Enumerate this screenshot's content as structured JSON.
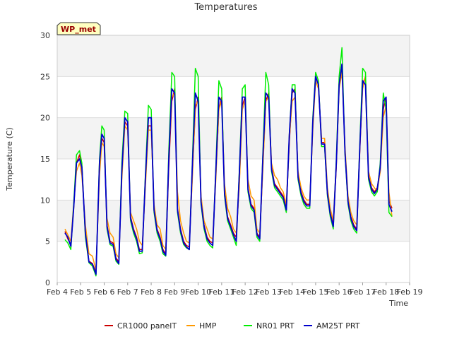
{
  "chart_data": {
    "type": "line",
    "title": "Temperatures",
    "xlabel": "Time",
    "ylabel": "Temperature (C)",
    "badge": "WP_met",
    "xlim": [
      4,
      19
    ],
    "ylim": [
      0,
      30
    ],
    "x_ticks": [
      {
        "value": 4,
        "label": "Feb 4"
      },
      {
        "value": 5,
        "label": "Feb 5"
      },
      {
        "value": 6,
        "label": "Feb 6"
      },
      {
        "value": 7,
        "label": "Feb 7"
      },
      {
        "value": 8,
        "label": "Feb 8"
      },
      {
        "value": 9,
        "label": "Feb 9"
      },
      {
        "value": 10,
        "label": "Feb 10"
      },
      {
        "value": 11,
        "label": "Feb 11"
      },
      {
        "value": 12,
        "label": "Feb 12"
      },
      {
        "value": 13,
        "label": "Feb 13"
      },
      {
        "value": 14,
        "label": "Feb 14"
      },
      {
        "value": 15,
        "label": "Feb 15"
      },
      {
        "value": 16,
        "label": "Feb 16"
      },
      {
        "value": 17,
        "label": "Feb 17"
      },
      {
        "value": 18,
        "label": "Feb 18"
      },
      {
        "value": 19,
        "label": "Feb 19"
      }
    ],
    "y_ticks": [
      0,
      5,
      10,
      15,
      20,
      25,
      30
    ],
    "grid": true,
    "banding": true,
    "legend_position": "bottom",
    "series": [
      {
        "name": "CR1000 panelT",
        "color": "#cc0000",
        "x": [
          4.33,
          4.45,
          4.58,
          4.7,
          4.82,
          4.95,
          5.05,
          5.2,
          5.35,
          5.5,
          5.65,
          5.8,
          5.9,
          6.0,
          6.12,
          6.25,
          6.38,
          6.5,
          6.62,
          6.75,
          6.88,
          7.0,
          7.12,
          7.25,
          7.38,
          7.5,
          7.62,
          7.75,
          7.88,
          8.0,
          8.12,
          8.25,
          8.38,
          8.5,
          8.62,
          8.75,
          8.88,
          9.0,
          9.12,
          9.25,
          9.38,
          9.5,
          9.62,
          9.75,
          9.88,
          10.0,
          10.12,
          10.25,
          10.38,
          10.5,
          10.62,
          10.75,
          10.88,
          11.0,
          11.12,
          11.25,
          11.38,
          11.5,
          11.62,
          11.75,
          11.88,
          12.0,
          12.12,
          12.25,
          12.38,
          12.5,
          12.62,
          12.75,
          12.88,
          13.0,
          13.12,
          13.25,
          13.38,
          13.5,
          13.62,
          13.75,
          13.88,
          14.0,
          14.12,
          14.25,
          14.38,
          14.5,
          14.62,
          14.75,
          14.88,
          15.0,
          15.12,
          15.25,
          15.38,
          15.5,
          15.62,
          15.75,
          15.88,
          16.0,
          16.12,
          16.25,
          16.38,
          16.5,
          16.62,
          16.75,
          16.88,
          17.0,
          17.12,
          17.25,
          17.38,
          17.5,
          17.62,
          17.75,
          17.88,
          18.0,
          18.12,
          18.25
        ],
        "y": [
          6.2,
          5.3,
          4.6,
          9.0,
          14.5,
          15.5,
          14.0,
          6.0,
          2.6,
          2.3,
          1.2,
          14.0,
          17.5,
          17.0,
          7.0,
          5.0,
          4.8,
          3.0,
          2.5,
          13.0,
          19.5,
          19.0,
          8.0,
          6.5,
          5.5,
          4.0,
          4.0,
          12.0,
          19.0,
          19.0,
          9.0,
          6.5,
          5.5,
          4.0,
          3.5,
          14.0,
          22.0,
          23.5,
          9.0,
          6.5,
          5.0,
          4.5,
          4.3,
          13.0,
          21.0,
          22.5,
          10.0,
          7.0,
          5.5,
          5.0,
          4.8,
          13.0,
          21.0,
          22.5,
          11.0,
          8.0,
          7.0,
          6.0,
          5.5,
          12.0,
          21.5,
          22.5,
          11.5,
          9.5,
          9.0,
          6.0,
          5.5,
          14.0,
          22.0,
          23.0,
          14.0,
          12.0,
          11.5,
          11.0,
          10.5,
          9.0,
          17.0,
          23.0,
          23.5,
          13.0,
          11.0,
          10.0,
          9.5,
          9.5,
          19.0,
          25.0,
          24.0,
          17.0,
          17.0,
          11.0,
          8.5,
          7.0,
          14.0,
          24.0,
          26.5,
          16.0,
          10.0,
          8.0,
          7.0,
          6.5,
          16.0,
          24.0,
          25.0,
          13.0,
          11.5,
          11.0,
          11.5,
          13.5,
          21.0,
          22.5,
          10.0,
          9.0
        ]
      },
      {
        "name": "HMP",
        "color": "#ff9900",
        "x": [
          4.33,
          4.45,
          4.58,
          4.7,
          4.82,
          4.95,
          5.05,
          5.2,
          5.35,
          5.5,
          5.65,
          5.8,
          5.9,
          6.0,
          6.12,
          6.25,
          6.38,
          6.5,
          6.62,
          6.75,
          6.88,
          7.0,
          7.12,
          7.25,
          7.38,
          7.5,
          7.62,
          7.75,
          7.88,
          8.0,
          8.12,
          8.25,
          8.38,
          8.5,
          8.62,
          8.75,
          8.88,
          9.0,
          9.12,
          9.25,
          9.38,
          9.5,
          9.62,
          9.75,
          9.88,
          10.0,
          10.12,
          10.25,
          10.38,
          10.5,
          10.62,
          10.75,
          10.88,
          11.0,
          11.12,
          11.25,
          11.38,
          11.5,
          11.62,
          11.75,
          11.88,
          12.0,
          12.12,
          12.25,
          12.38,
          12.5,
          12.62,
          12.75,
          12.88,
          13.0,
          13.12,
          13.25,
          13.38,
          13.5,
          13.62,
          13.75,
          13.88,
          14.0,
          14.12,
          14.25,
          14.38,
          14.5,
          14.62,
          14.75,
          14.88,
          15.0,
          15.12,
          15.25,
          15.38,
          15.5,
          15.62,
          15.75,
          15.88,
          16.0,
          16.12,
          16.25,
          16.38,
          16.5,
          16.62,
          16.75,
          16.88,
          17.0,
          17.12,
          17.25,
          17.38,
          17.5,
          17.62,
          17.75,
          17.88,
          18.0,
          18.12,
          18.25
        ],
        "y": [
          6.5,
          5.8,
          5.0,
          9.5,
          13.5,
          14.5,
          13.0,
          7.0,
          3.5,
          3.2,
          1.5,
          13.0,
          17.0,
          16.5,
          7.8,
          6.0,
          5.5,
          3.5,
          3.0,
          12.5,
          19.0,
          18.5,
          8.5,
          7.5,
          6.5,
          5.0,
          4.5,
          11.5,
          18.5,
          18.5,
          9.5,
          7.0,
          6.5,
          4.5,
          4.0,
          15.0,
          22.5,
          23.0,
          11.0,
          7.5,
          6.0,
          5.0,
          4.8,
          12.5,
          21.5,
          22.0,
          10.5,
          7.5,
          6.5,
          5.5,
          5.3,
          12.5,
          21.0,
          22.0,
          12.0,
          9.0,
          8.0,
          6.5,
          6.0,
          11.5,
          21.0,
          22.0,
          12.5,
          10.5,
          10.0,
          6.5,
          6.0,
          13.5,
          22.0,
          22.5,
          14.5,
          13.0,
          12.5,
          11.5,
          11.0,
          9.5,
          17.5,
          22.0,
          22.5,
          13.5,
          11.5,
          10.5,
          10.0,
          10.0,
          18.5,
          24.5,
          23.5,
          17.5,
          17.5,
          11.5,
          9.0,
          7.5,
          14.5,
          23.5,
          25.5,
          16.5,
          10.5,
          8.5,
          7.5,
          7.0,
          16.5,
          23.5,
          25.0,
          13.5,
          12.0,
          11.5,
          11.0,
          13.5,
          20.0,
          21.5,
          11.0,
          8.0
        ]
      },
      {
        "name": "NR01 PRT",
        "color": "#00ee00",
        "x": [
          4.33,
          4.45,
          4.58,
          4.7,
          4.82,
          4.95,
          5.05,
          5.2,
          5.35,
          5.5,
          5.65,
          5.8,
          5.9,
          6.0,
          6.12,
          6.25,
          6.38,
          6.5,
          6.62,
          6.75,
          6.88,
          7.0,
          7.12,
          7.25,
          7.38,
          7.5,
          7.62,
          7.75,
          7.88,
          8.0,
          8.12,
          8.25,
          8.38,
          8.5,
          8.62,
          8.75,
          8.88,
          9.0,
          9.12,
          9.25,
          9.38,
          9.5,
          9.62,
          9.75,
          9.88,
          10.0,
          10.12,
          10.25,
          10.38,
          10.5,
          10.62,
          10.75,
          10.88,
          11.0,
          11.12,
          11.25,
          11.38,
          11.5,
          11.62,
          11.75,
          11.88,
          12.0,
          12.12,
          12.25,
          12.38,
          12.5,
          12.62,
          12.75,
          12.88,
          13.0,
          13.12,
          13.25,
          13.38,
          13.5,
          13.62,
          13.75,
          13.88,
          14.0,
          14.12,
          14.25,
          14.38,
          14.5,
          14.62,
          14.75,
          14.88,
          15.0,
          15.12,
          15.25,
          15.38,
          15.5,
          15.62,
          15.75,
          15.88,
          16.0,
          16.12,
          16.25,
          16.38,
          16.5,
          16.62,
          16.75,
          16.88,
          17.0,
          17.12,
          17.25,
          17.38,
          17.5,
          17.62,
          17.75,
          17.88,
          18.0,
          18.12,
          18.25
        ],
        "y": [
          5.2,
          4.8,
          4.0,
          9.5,
          15.5,
          16.0,
          14.5,
          5.5,
          2.4,
          2.0,
          0.8,
          15.0,
          19.0,
          18.5,
          6.5,
          4.6,
          4.4,
          2.6,
          2.2,
          14.5,
          20.8,
          20.5,
          7.5,
          6.0,
          5.0,
          3.5,
          3.6,
          13.0,
          21.5,
          21.0,
          8.5,
          6.0,
          5.0,
          3.5,
          3.2,
          16.0,
          25.5,
          25.0,
          8.5,
          6.0,
          4.6,
          4.2,
          4.0,
          14.5,
          26.0,
          25.0,
          9.5,
          6.5,
          5.0,
          4.5,
          4.2,
          14.0,
          24.5,
          23.5,
          10.5,
          7.5,
          6.5,
          5.5,
          4.5,
          13.5,
          23.5,
          24.0,
          11.0,
          9.0,
          8.5,
          5.5,
          5.0,
          15.5,
          25.5,
          24.0,
          13.5,
          11.5,
          11.0,
          10.5,
          10.0,
          8.5,
          18.0,
          24.0,
          24.0,
          12.5,
          10.5,
          9.5,
          9.0,
          9.0,
          20.0,
          25.5,
          24.5,
          16.5,
          16.5,
          10.5,
          8.0,
          6.5,
          15.0,
          25.0,
          28.5,
          15.5,
          9.5,
          7.5,
          6.5,
          6.0,
          17.0,
          26.0,
          25.5,
          12.5,
          11.0,
          10.5,
          11.0,
          14.5,
          23.0,
          21.0,
          8.5,
          8.0
        ]
      },
      {
        "name": "AM25T PRT",
        "color": "#0000cc",
        "x": [
          4.33,
          4.45,
          4.58,
          4.7,
          4.82,
          4.95,
          5.05,
          5.2,
          5.35,
          5.5,
          5.65,
          5.8,
          5.9,
          6.0,
          6.12,
          6.25,
          6.38,
          6.5,
          6.62,
          6.75,
          6.88,
          7.0,
          7.12,
          7.25,
          7.38,
          7.5,
          7.62,
          7.75,
          7.88,
          8.0,
          8.12,
          8.25,
          8.38,
          8.5,
          8.62,
          8.75,
          8.88,
          9.0,
          9.12,
          9.25,
          9.38,
          9.5,
          9.62,
          9.75,
          9.88,
          10.0,
          10.12,
          10.25,
          10.38,
          10.5,
          10.62,
          10.75,
          10.88,
          11.0,
          11.12,
          11.25,
          11.38,
          11.5,
          11.62,
          11.75,
          11.88,
          12.0,
          12.12,
          12.25,
          12.38,
          12.5,
          12.62,
          12.75,
          12.88,
          13.0,
          13.12,
          13.25,
          13.38,
          13.5,
          13.62,
          13.75,
          13.88,
          14.0,
          14.12,
          14.25,
          14.38,
          14.5,
          14.62,
          14.75,
          14.88,
          15.0,
          15.12,
          15.25,
          15.38,
          15.5,
          15.62,
          15.75,
          15.88,
          16.0,
          16.12,
          16.25,
          16.38,
          16.5,
          16.62,
          16.75,
          16.88,
          17.0,
          17.12,
          17.25,
          17.38,
          17.5,
          17.62,
          17.75,
          17.88,
          18.0,
          18.12,
          18.25
        ],
        "y": [
          6.0,
          5.5,
          4.4,
          9.0,
          14.5,
          15.0,
          14.0,
          6.0,
          2.5,
          2.2,
          1.0,
          14.5,
          18.0,
          17.5,
          6.8,
          4.8,
          4.6,
          2.8,
          2.3,
          13.5,
          20.0,
          19.5,
          7.8,
          6.3,
          5.3,
          3.8,
          3.8,
          12.5,
          20.0,
          20.0,
          8.8,
          6.3,
          5.3,
          3.8,
          3.3,
          15.0,
          23.5,
          23.0,
          8.8,
          6.3,
          4.8,
          4.3,
          4.0,
          14.0,
          23.0,
          22.0,
          9.8,
          6.8,
          5.3,
          4.8,
          4.5,
          13.5,
          22.5,
          22.0,
          10.8,
          7.8,
          6.8,
          5.8,
          5.0,
          13.0,
          22.5,
          22.5,
          11.3,
          9.3,
          8.8,
          5.8,
          5.3,
          15.0,
          23.0,
          22.5,
          13.8,
          11.8,
          11.3,
          10.8,
          10.3,
          8.8,
          18.0,
          23.5,
          23.0,
          12.8,
          10.8,
          9.8,
          9.3,
          9.3,
          19.5,
          25.0,
          24.0,
          16.8,
          16.8,
          10.8,
          8.3,
          6.8,
          14.5,
          24.0,
          26.5,
          15.8,
          9.8,
          7.8,
          6.8,
          6.3,
          16.5,
          24.5,
          24.0,
          12.8,
          11.3,
          10.8,
          11.3,
          14.0,
          22.0,
          22.5,
          9.5,
          8.6
        ]
      }
    ]
  }
}
